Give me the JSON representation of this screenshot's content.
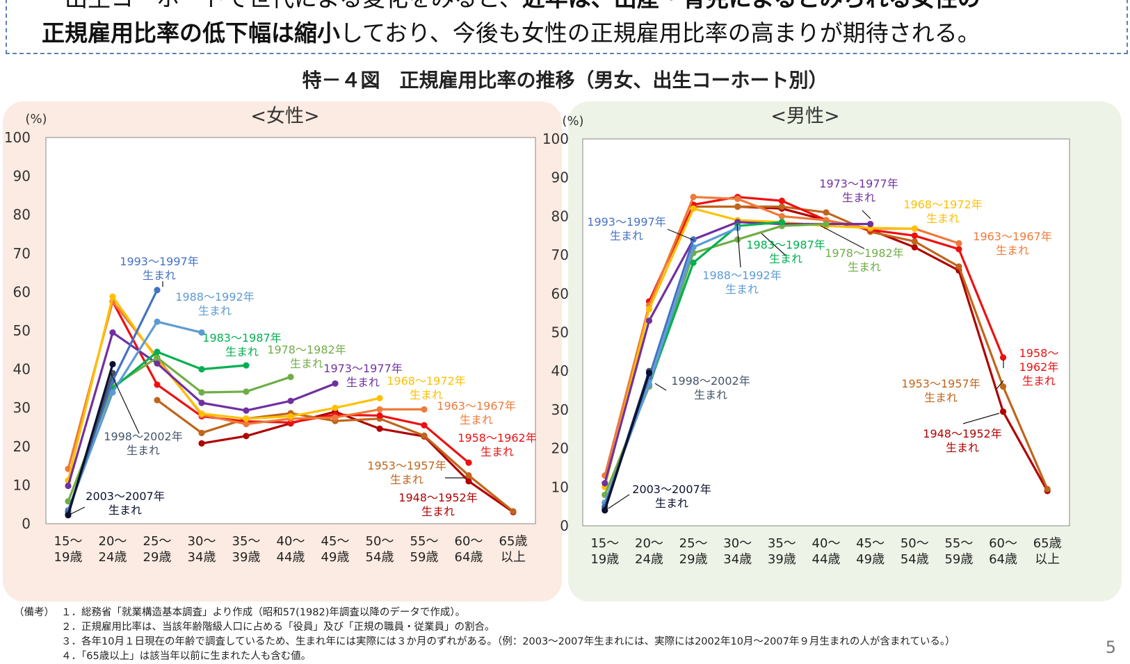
{
  "header": {
    "line1_normal": "・出生コーホートで世代による変化をみると、",
    "line1_bold": "近年は、出産・育児によるとみられる女性の",
    "line2_bold": "正規雇用比率の低下幅は縮小",
    "line2_normal": "しており、今後も女性の正規雇用比率の高まりが期待される。"
  },
  "figure_title": "特－４図　正規雇用比率の推移（男女、出生コーホート別）",
  "colors": {
    "1948": "#b00000",
    "1953": "#c0651c",
    "1958": "#ee1010",
    "1963": "#ee7a3a",
    "1968": "#ffc000",
    "1973": "#7030a0",
    "1978": "#70ad47",
    "1983": "#00b050",
    "1988": "#5b9bd5",
    "1993": "#4472c4",
    "1998": "#44546a",
    "2003": "#0a1030"
  },
  "chart_data": [
    {
      "type": "line",
      "title": "<女性>",
      "ylabel": "(%)",
      "ylim": [
        0,
        100
      ],
      "yticks": [
        "0",
        "10",
        "20",
        "30",
        "40",
        "50",
        "60",
        "70",
        "80",
        "90",
        "100"
      ],
      "categories": [
        [
          "15～",
          "19歳"
        ],
        [
          "20～",
          "24歳"
        ],
        [
          "25～",
          "29歳"
        ],
        [
          "30～",
          "34歳"
        ],
        [
          "35～",
          "39歳"
        ],
        [
          "40～",
          "44歳"
        ],
        [
          "45～",
          "49歳"
        ],
        [
          "50～",
          "54歳"
        ],
        [
          "55～",
          "59歳"
        ],
        [
          "60～",
          "64歳"
        ],
        [
          "65歳",
          "以上"
        ]
      ],
      "series": [
        {
          "key": "1948",
          "name": "1948～1952年生まれ",
          "values": [
            null,
            null,
            null,
            20.8,
            22.7,
            26.0,
            29.0,
            24.6,
            22.6,
            11.0,
            3.0
          ]
        },
        {
          "key": "1953",
          "name": "1953～1957年生まれ",
          "values": [
            null,
            null,
            32.0,
            23.5,
            27.2,
            28.6,
            26.6,
            27.2,
            22.8,
            12.5,
            3.2
          ]
        },
        {
          "key": "1958",
          "name": "1958～1962年生まれ",
          "values": [
            null,
            57.5,
            36.0,
            27.8,
            26.5,
            26.2,
            28.2,
            28.0,
            25.5,
            15.8,
            null
          ]
        },
        {
          "key": "1963",
          "name": "1963～1967年生まれ",
          "values": [
            14.2,
            57.5,
            43.0,
            28.2,
            25.8,
            27.2,
            27.5,
            29.6,
            29.6,
            null,
            null
          ]
        },
        {
          "key": "1968",
          "name": "1968～1972年生まれ",
          "values": [
            11.2,
            58.8,
            42.5,
            28.5,
            27.2,
            27.8,
            30.0,
            32.5,
            null,
            null,
            null
          ]
        },
        {
          "key": "1973",
          "name": "1973～1977年生まれ",
          "values": [
            9.8,
            49.5,
            41.5,
            31.3,
            29.3,
            31.8,
            36.3,
            null,
            null,
            null,
            null
          ]
        },
        {
          "key": "1978",
          "name": "1978～1982年生まれ",
          "values": [
            5.8,
            35.5,
            43.0,
            34.0,
            34.2,
            38.0,
            null,
            null,
            null,
            null,
            null
          ]
        },
        {
          "key": "1983",
          "name": "1983～1987年生まれ",
          "values": [
            null,
            35.0,
            44.5,
            40.0,
            41.0,
            null,
            null,
            null,
            null,
            null,
            null
          ]
        },
        {
          "key": "1988",
          "name": "1988～1992年生まれ",
          "values": [
            3.5,
            34.0,
            52.3,
            49.5,
            null,
            null,
            null,
            null,
            null,
            null,
            null
          ]
        },
        {
          "key": "1993",
          "name": "1993～1997年生まれ",
          "values": [
            3.2,
            37.0,
            60.5,
            null,
            null,
            null,
            null,
            null,
            null,
            null,
            null
          ]
        },
        {
          "key": "1998",
          "name": "1998～2002年生まれ",
          "values": [
            2.6,
            39.0,
            null,
            null,
            null,
            null,
            null,
            null,
            null,
            null,
            null
          ]
        },
        {
          "key": "2003",
          "name": "2003～2007年生まれ",
          "values": [
            2.2,
            41.3,
            null,
            null,
            null,
            null,
            null,
            null,
            null,
            null,
            null
          ]
        }
      ],
      "labels": [
        {
          "key": "1993",
          "lines": [
            "1993～1997年",
            "生まれ"
          ]
        },
        {
          "key": "1988",
          "lines": [
            "1988～1992年",
            "生まれ"
          ]
        },
        {
          "key": "1983",
          "lines": [
            "1983～1987年",
            "生まれ"
          ]
        },
        {
          "key": "1978",
          "lines": [
            "1978～1982年",
            "生まれ"
          ]
        },
        {
          "key": "1973",
          "lines": [
            "1973～1977年",
            "生まれ"
          ]
        },
        {
          "key": "1968",
          "lines": [
            "1968～1972年",
            "生まれ"
          ]
        },
        {
          "key": "1963",
          "lines": [
            "1963～1967年",
            "生まれ"
          ]
        },
        {
          "key": "1958",
          "lines": [
            "1958～1962年",
            "生まれ"
          ]
        },
        {
          "key": "1953",
          "lines": [
            "1953～1957年",
            "生まれ"
          ]
        },
        {
          "key": "1948",
          "lines": [
            "1948～1952年",
            "生まれ"
          ]
        },
        {
          "key": "1998",
          "lines": [
            "1998～2002年",
            "生まれ"
          ]
        },
        {
          "key": "2003",
          "lines": [
            "2003～2007年",
            "生まれ"
          ]
        }
      ]
    },
    {
      "type": "line",
      "title": "<男性>",
      "ylabel": "(%)",
      "ylim": [
        0,
        100
      ],
      "yticks": [
        "0",
        "10",
        "20",
        "30",
        "40",
        "50",
        "60",
        "70",
        "80",
        "90",
        "100"
      ],
      "categories": [
        [
          "15～",
          "19歳"
        ],
        [
          "20～",
          "24歳"
        ],
        [
          "25～",
          "29歳"
        ],
        [
          "30～",
          "34歳"
        ],
        [
          "35～",
          "39歳"
        ],
        [
          "40～",
          "44歳"
        ],
        [
          "45～",
          "49歳"
        ],
        [
          "50～",
          "54歳"
        ],
        [
          "55～",
          "59歳"
        ],
        [
          "60～",
          "64歳"
        ],
        [
          "65歳",
          "以上"
        ]
      ],
      "series": [
        {
          "key": "1948",
          "name": "1948～1952年生まれ",
          "values": [
            null,
            null,
            null,
            82.5,
            82.0,
            79.0,
            76.5,
            72.0,
            66.0,
            29.5,
            9.0
          ]
        },
        {
          "key": "1953",
          "name": "1953～1957年生まれ",
          "values": [
            null,
            null,
            82.5,
            82.5,
            82.5,
            81.0,
            76.0,
            73.5,
            67.0,
            36.0,
            9.5
          ]
        },
        {
          "key": "1958",
          "name": "1958～1962年生まれ",
          "values": [
            null,
            58.0,
            83.0,
            85.0,
            84.0,
            79.0,
            76.5,
            75.0,
            71.5,
            43.5,
            null
          ]
        },
        {
          "key": "1963",
          "name": "1963～1967年生まれ",
          "values": [
            13.0,
            57.0,
            85.0,
            84.5,
            80.0,
            79.0,
            76.8,
            76.8,
            73.0,
            null,
            null
          ]
        },
        {
          "key": "1968",
          "name": "1968～1972年生まれ",
          "values": [
            10.0,
            56.0,
            82.0,
            79.0,
            78.5,
            77.5,
            77.0,
            76.8,
            null,
            null,
            null
          ]
        },
        {
          "key": "1973",
          "name": "1973～1977年生まれ",
          "values": [
            11.0,
            53.0,
            74.0,
            78.5,
            78.0,
            78.0,
            78.0,
            null,
            null,
            null,
            null
          ]
        },
        {
          "key": "1978",
          "name": "1978～1982年生まれ",
          "values": [
            8.0,
            36.0,
            70.5,
            74.0,
            77.5,
            78.0,
            null,
            null,
            null,
            null,
            null
          ]
        },
        {
          "key": "1983",
          "name": "1983～1987年生まれ",
          "values": [
            null,
            36.5,
            68.0,
            77.5,
            78.5,
            null,
            null,
            null,
            null,
            null,
            null
          ]
        },
        {
          "key": "1988",
          "name": "1988～1992年生まれ",
          "values": [
            6.0,
            36.5,
            72.0,
            77.0,
            null,
            null,
            null,
            null,
            null,
            null,
            null
          ]
        },
        {
          "key": "1993",
          "name": "1993～1997年生まれ",
          "values": [
            5.0,
            38.5,
            74.0,
            null,
            null,
            null,
            null,
            null,
            null,
            null,
            null
          ]
        },
        {
          "key": "1998",
          "name": "1998～2002年生まれ",
          "values": [
            4.5,
            40.0,
            null,
            null,
            null,
            null,
            null,
            null,
            null,
            null,
            null
          ]
        },
        {
          "key": "2003",
          "name": "2003～2007年生まれ",
          "values": [
            4.0,
            39.5,
            null,
            null,
            null,
            null,
            null,
            null,
            null,
            null,
            null
          ]
        }
      ],
      "labels": [
        {
          "key": "1973",
          "lines": [
            "1973～1977年",
            "生まれ"
          ]
        },
        {
          "key": "1968",
          "lines": [
            "1968～1972年",
            "生まれ"
          ]
        },
        {
          "key": "1993",
          "lines": [
            "1993～1997年",
            "生まれ"
          ]
        },
        {
          "key": "1963",
          "lines": [
            "1963～1967年",
            "生まれ"
          ]
        },
        {
          "key": "1983",
          "lines": [
            "1983～1987年",
            "生まれ"
          ]
        },
        {
          "key": "1978",
          "lines": [
            "1978～1982年",
            "生まれ"
          ]
        },
        {
          "key": "1988",
          "lines": [
            "1988～1992年",
            "生まれ"
          ]
        },
        {
          "key": "1958",
          "lines": [
            "1958～",
            "1962年",
            "生まれ"
          ]
        },
        {
          "key": "1953",
          "lines": [
            "1953～1957年",
            "生まれ"
          ]
        },
        {
          "key": "1998",
          "lines": [
            "1998～2002年",
            "生まれ"
          ]
        },
        {
          "key": "1948",
          "lines": [
            "1948～1952年",
            "生まれ"
          ]
        },
        {
          "key": "2003",
          "lines": [
            "2003～2007年",
            "生まれ"
          ]
        }
      ]
    }
  ],
  "notes": {
    "label": "（備考）",
    "items": [
      "１．総務省「就業構造基本調査」より作成（昭和57(1982)年調査以降のデータで作成）。",
      "２．正規雇用比率は、当該年齢階級人口に占める「役員」及び「正規の職員・従業員」の割合。",
      "３．各年10月１日現在の年齢で調査しているため、生まれ年には実際には３か月のずれがある。（例：2003～2007年生まれには、実際には2002年10月～2007年９月生まれの人が含まれている。）",
      "４．「65歳以上」は該当年以前に生まれた人も含む値。"
    ]
  },
  "page_number": "5"
}
